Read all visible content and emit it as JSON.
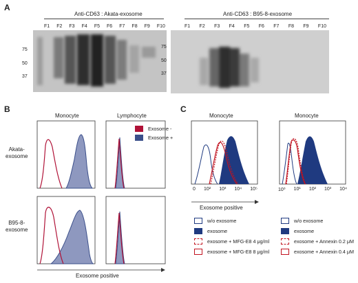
{
  "panel_labels": {
    "a": "A",
    "b": "B",
    "c": "C"
  },
  "panel_a": {
    "blots": [
      {
        "title": "Anti-CD63 : Akata-exosome",
        "fractions": [
          "F1",
          "F2",
          "F3",
          "F4",
          "F5",
          "F6",
          "F7",
          "F8",
          "F9",
          "F10"
        ],
        "markers": [
          "75",
          "50",
          "37"
        ]
      },
      {
        "title": "Anti-CD63 : B95-8-exosome",
        "fractions": [
          "F1",
          "F2",
          "F3",
          "F4",
          "F5",
          "F6",
          "F7",
          "F8",
          "F9",
          "F10"
        ],
        "markers": [
          "75",
          "50",
          "37"
        ]
      }
    ]
  },
  "panel_b": {
    "col_titles": [
      "Monocyte",
      "Lymphocyte"
    ],
    "row_labels": [
      [
        "Akata-",
        "exosome"
      ],
      [
        "B95-8-",
        "exosome"
      ]
    ],
    "legend": [
      "Exosome -",
      "Exosome +"
    ],
    "xlabel": "Exosome positive",
    "colors": {
      "neg": "#b01237",
      "pos": "#3b4f8a",
      "pos_fill": "#8e98bf"
    }
  },
  "panel_c": {
    "col_titles": [
      "Monocyte",
      "Monocyte"
    ],
    "xlabel": "Exosome positive",
    "ticks_left": [
      "0",
      "10²",
      "10³",
      "10⁴",
      "10⁵"
    ],
    "ticks_right": [
      "10⁰",
      "10¹",
      "10²",
      "10³",
      "10⁴"
    ],
    "legend_left": [
      "w/o exosome",
      "exosome",
      "exosome + MFG-E8 4 μg/ml",
      "exosome + MFG-E8 8 μg/ml"
    ],
    "legend_right": [
      "w/o exosome",
      "exosome",
      "exosome + Annexin 0.2 μM",
      "exosome + Annexin 0.4 μM"
    ],
    "colors": {
      "blue": "#1f3a80",
      "red": "#c1121f"
    }
  }
}
